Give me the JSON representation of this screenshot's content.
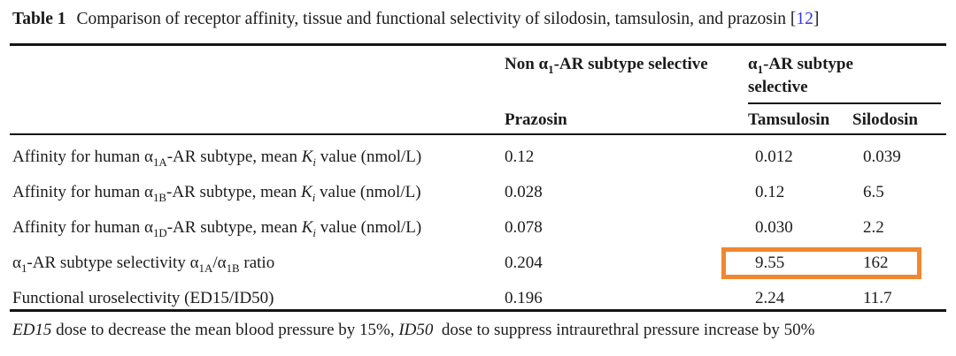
{
  "title": {
    "label": "Table 1",
    "text": "Comparison of receptor affinity, tissue and functional selectivity of silodosin, tamsulosin, and prazosin",
    "citation_open": "[",
    "citation_number": "12",
    "citation_close": "]"
  },
  "table": {
    "group_headers": {
      "non_selective": "Non α~1~-AR subtype selective",
      "selective": "α~1~-AR subtype selective"
    },
    "column_headers": {
      "prazosin": "Prazosin",
      "tamsulosin": "Tamsulosin",
      "silodosin": "Silodosin"
    },
    "rows": [
      {
        "label": "Affinity for human α~1A~-AR subtype, mean *K~i~* value (nmol/L)",
        "values": {
          "prazosin": "0.12",
          "tamsulosin": "0.012",
          "silodosin": "0.039"
        },
        "highlight": false
      },
      {
        "label": "Affinity for human α~1B~-AR subtype, mean *K~i~* value (nmol/L)",
        "values": {
          "prazosin": "0.028",
          "tamsulosin": "0.12",
          "silodosin": "6.5"
        },
        "highlight": false
      },
      {
        "label": "Affinity for human α~1D~-AR subtype, mean *K~i~* value (nmol/L)",
        "values": {
          "prazosin": "0.078",
          "tamsulosin": "0.030",
          "silodosin": "2.2"
        },
        "highlight": false
      },
      {
        "label": "α~1~-AR subtype selectivity α~1A~/α~1B~ ratio",
        "values": {
          "prazosin": "0.204",
          "tamsulosin": "9.55",
          "silodosin": "162"
        },
        "highlight": true
      },
      {
        "label": "Functional uroselectivity (ED15/ID50)",
        "values": {
          "prazosin": "0.196",
          "tamsulosin": "2.24",
          "silodosin": "11.7"
        },
        "highlight": false
      }
    ]
  },
  "footnote": "*ED15* dose to decrease the mean blood pressure by 15%, *ID50*  dose to suppress intraurethral pressure increase by 50%",
  "colors": {
    "highlight_border": "#f1872e",
    "citation_blue": "#3333ee",
    "text": "#1b1b1b",
    "rule": "#141414"
  }
}
